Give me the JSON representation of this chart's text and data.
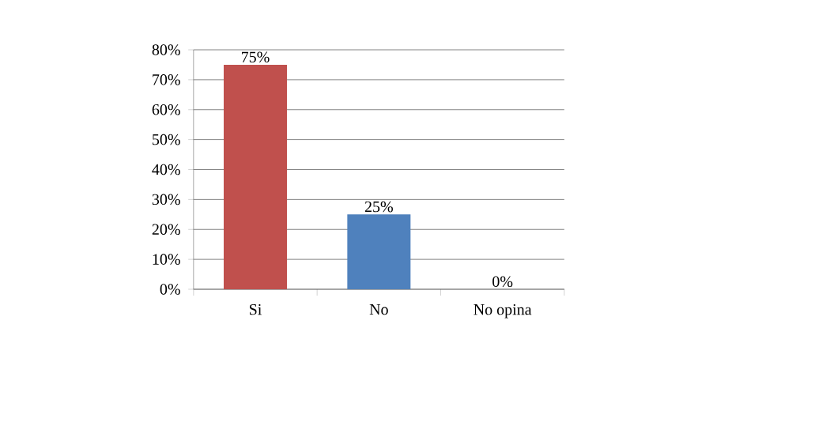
{
  "chart_data": {
    "type": "bar",
    "categories": [
      "Si",
      "No",
      "No opina"
    ],
    "values": [
      75,
      25,
      0
    ],
    "colors": [
      "#c0504d",
      "#4f81bd",
      "#9bbb59"
    ],
    "value_labels": [
      "75%",
      "25%",
      "0%"
    ],
    "ylim": [
      0,
      80
    ],
    "yticks": [
      {
        "value": 0,
        "label": "0%"
      },
      {
        "value": 10,
        "label": "10%"
      },
      {
        "value": 20,
        "label": "20%"
      },
      {
        "value": 30,
        "label": "30%"
      },
      {
        "value": 40,
        "label": "40%"
      },
      {
        "value": 50,
        "label": "50%"
      },
      {
        "value": 60,
        "label": "60%"
      },
      {
        "value": 70,
        "label": "70%"
      },
      {
        "value": 80,
        "label": "80%"
      }
    ],
    "grid": "y"
  }
}
